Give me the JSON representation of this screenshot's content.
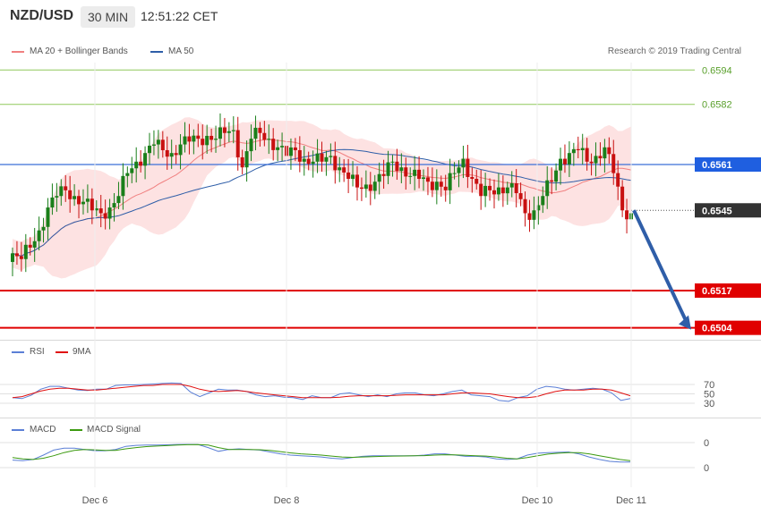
{
  "header": {
    "pair": "NZD/USD",
    "timeframe": "30 MIN",
    "time": "12:51:22 CET"
  },
  "legend_top": {
    "bb_label": "MA 20 + Bollinger Bands",
    "bb_color": "#f08080",
    "ma50_label": "MA 50",
    "ma50_color": "#2f5ea8",
    "credit": "Research © 2019 Trading Central"
  },
  "legend_rsi": {
    "rsi_label": "RSI",
    "rsi_color": "#5b7fd6",
    "ma_label": "9MA",
    "ma_color": "#e01010"
  },
  "legend_macd": {
    "macd_label": "MACD",
    "macd_color": "#5b7fd6",
    "signal_label": "MACD Signal",
    "signal_color": "#3c9a10"
  },
  "colors": {
    "up": "#1a7f1a",
    "down": "#c81010",
    "band": "#fde2e2",
    "green_line": "#8fc95a",
    "blue_line": "#3b6fd8",
    "red_line": "#e00000",
    "arrow": "#2f5ea8"
  },
  "chart_data": [
    {
      "type": "candlestick",
      "pair": "NZD/USD",
      "x_labels": [
        "Dec 6",
        "Dec 8",
        "Dec 10",
        "Dec 11"
      ],
      "ylim": [
        0.6496,
        0.66
      ],
      "levels": [
        {
          "value": 0.6594,
          "label": "0.6594",
          "kind": "resistance",
          "color": "#8fc95a"
        },
        {
          "value": 0.6582,
          "label": "0.6582",
          "kind": "resistance",
          "color": "#8fc95a"
        },
        {
          "value": 0.6561,
          "label": "0.6561",
          "kind": "pivot",
          "color": "#3b6fd8"
        },
        {
          "value": 0.6545,
          "label": "0.6545",
          "kind": "last price",
          "color": "#333333"
        },
        {
          "value": 0.6517,
          "label": "0.6517",
          "kind": "support",
          "color": "#e00000"
        },
        {
          "value": 0.6504,
          "label": "0.6504",
          "kind": "support",
          "color": "#e00000"
        }
      ],
      "projection": {
        "from": 0.6545,
        "to": 0.6504,
        "direction": "down"
      },
      "close_anchors": [
        0.653,
        0.6528,
        0.6532,
        0.6538,
        0.6546,
        0.655,
        0.6552,
        0.655,
        0.6548,
        0.6545,
        0.6544,
        0.6546,
        0.655,
        0.6558,
        0.6562,
        0.6565,
        0.6568,
        0.6566,
        0.6565,
        0.6568,
        0.6569,
        0.657,
        0.6571,
        0.657,
        0.6572,
        0.6573,
        0.656,
        0.657,
        0.6572,
        0.657,
        0.6567,
        0.6564,
        0.6566,
        0.6563,
        0.6562,
        0.6562,
        0.6564,
        0.656,
        0.6556,
        0.6553,
        0.6554,
        0.6555,
        0.6557,
        0.6562,
        0.656,
        0.6557,
        0.6556,
        0.6555,
        0.6555,
        0.6552,
        0.6558,
        0.6563,
        0.6556,
        0.655,
        0.6552,
        0.6553,
        0.6553,
        0.6551,
        0.6544,
        0.6545,
        0.655,
        0.6555,
        0.6563,
        0.6565,
        0.6566,
        0.6562,
        0.6564,
        0.6567,
        0.6558,
        0.6545,
        0.6544
      ]
    },
    {
      "type": "line",
      "name_label": "RSI",
      "ylim": [
        25,
        80
      ],
      "yticks": [
        30,
        50,
        70
      ],
      "series": [
        {
          "name": "RSI",
          "values": [
            42,
            40,
            47,
            60,
            66,
            66,
            62,
            58,
            57,
            60,
            60,
            68,
            69,
            69,
            70,
            71,
            72,
            73,
            72,
            54,
            44,
            52,
            60,
            58,
            58,
            55,
            48,
            44,
            46,
            43,
            42,
            38,
            46,
            42,
            42,
            50,
            52,
            48,
            44,
            48,
            44,
            50,
            52,
            52,
            48,
            46,
            50,
            55,
            58,
            48,
            46,
            44,
            36,
            34,
            42,
            46,
            60,
            66,
            64,
            60,
            58,
            60,
            62,
            60,
            52,
            36,
            40
          ]
        },
        {
          "name": "9MA",
          "values": [
            42,
            44,
            50,
            56,
            60,
            62,
            62,
            60,
            58,
            58,
            60,
            62,
            64,
            66,
            68,
            68,
            70,
            70,
            70,
            66,
            60,
            56,
            55,
            56,
            57,
            55,
            52,
            50,
            48,
            46,
            44,
            42,
            42,
            42,
            42,
            43,
            45,
            46,
            46,
            46,
            46,
            47,
            48,
            48,
            48,
            48,
            48,
            50,
            52,
            52,
            51,
            50,
            47,
            44,
            42,
            42,
            44,
            50,
            55,
            58,
            58,
            58,
            60,
            60,
            58,
            52,
            46
          ]
        }
      ]
    },
    {
      "type": "line",
      "name_label": "MACD",
      "yticks": [
        "0",
        "0"
      ],
      "series": [
        {
          "name": "MACD",
          "values": [
            -0.4,
            -0.45,
            -0.35,
            0.0,
            0.4,
            0.55,
            0.55,
            0.45,
            0.35,
            0.35,
            0.45,
            0.7,
            0.78,
            0.8,
            0.8,
            0.82,
            0.85,
            0.86,
            0.85,
            0.6,
            0.3,
            0.45,
            0.5,
            0.45,
            0.4,
            0.25,
            0.1,
            0.0,
            -0.05,
            -0.1,
            -0.15,
            -0.25,
            -0.3,
            -0.2,
            -0.1,
            -0.05,
            -0.05,
            -0.05,
            -0.05,
            -0.05,
            0.0,
            0.1,
            0.1,
            0.0,
            -0.1,
            -0.1,
            -0.15,
            -0.3,
            -0.35,
            -0.3,
            0.0,
            0.15,
            0.2,
            0.22,
            0.25,
            0.1,
            -0.15,
            -0.35,
            -0.5,
            -0.55,
            -0.55
          ]
        },
        {
          "name": "MACD Signal",
          "values": [
            -0.2,
            -0.3,
            -0.35,
            -0.25,
            -0.05,
            0.2,
            0.38,
            0.45,
            0.42,
            0.38,
            0.38,
            0.5,
            0.6,
            0.68,
            0.72,
            0.76,
            0.8,
            0.83,
            0.84,
            0.8,
            0.6,
            0.45,
            0.45,
            0.45,
            0.43,
            0.38,
            0.28,
            0.18,
            0.1,
            0.05,
            0.0,
            -0.08,
            -0.15,
            -0.18,
            -0.15,
            -0.12,
            -0.1,
            -0.08,
            -0.07,
            -0.06,
            -0.04,
            0.0,
            0.03,
            0.02,
            -0.02,
            -0.05,
            -0.08,
            -0.15,
            -0.25,
            -0.3,
            -0.2,
            -0.05,
            0.08,
            0.15,
            0.2,
            0.2,
            0.1,
            -0.05,
            -0.2,
            -0.35,
            -0.45
          ]
        }
      ]
    }
  ]
}
